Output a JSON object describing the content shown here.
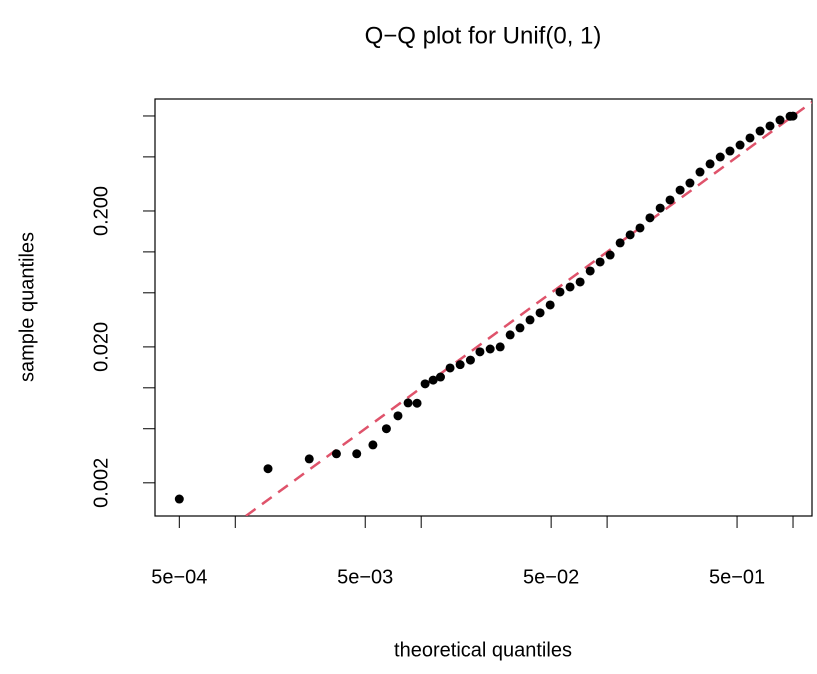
{
  "chart_data": {
    "type": "scatter",
    "title": "Q−Q plot for  Unif(0, 1)",
    "x_label": "theoretical quantiles",
    "y_label": "sample quantiles",
    "x_log": true,
    "y_log": true,
    "xlim": [
      0.00037,
      1.265
    ],
    "ylim": [
      0.00114,
      1.333
    ],
    "xticks": [
      0.0005,
      0.005,
      0.05,
      0.5
    ],
    "xticks_labels": [
      "5e−04",
      "5e−03",
      "5e−02",
      "5e−01"
    ],
    "x_minor_ticks": [
      0.001,
      0.01,
      0.1,
      1
    ],
    "yticks": [
      0.002,
      {
        "value": 0.02,
        "label": "0.020"
      },
      {
        "value": 0.2,
        "label": "0.200"
      }
    ],
    "y_minor_ticks": [
      0.005,
      0.01,
      0.05,
      0.1,
      0.5,
      1
    ],
    "color": "#000000",
    "ref_line_color": "#DF536B",
    "x": [
      0.0005,
      0.0015,
      0.0025,
      0.0035,
      0.0045,
      0.0055,
      0.0065,
      0.0075,
      0.0085,
      0.0095,
      0.0105,
      0.0116,
      0.0127,
      0.0143,
      0.0162,
      0.0184,
      0.0207,
      0.0235,
      0.0266,
      0.0301,
      0.034,
      0.0385,
      0.0436,
      0.0494,
      0.0558,
      0.0632,
      0.0716,
      0.0811,
      0.0917,
      0.1038,
      0.1175,
      0.133,
      0.1503,
      0.17,
      0.193,
      0.218,
      0.247,
      0.279,
      0.316,
      0.358,
      0.406,
      0.458,
      0.519,
      0.587,
      0.665,
      0.752,
      0.851,
      0.964,
      0.9995
    ],
    "values": [
      0.00152,
      0.00254,
      0.003,
      0.00327,
      0.00327,
      0.0038,
      0.005,
      0.00622,
      0.00774,
      0.0077,
      0.0107,
      0.0114,
      0.012,
      0.014,
      0.0148,
      0.016,
      0.0184,
      0.0193,
      0.02,
      0.0245,
      0.0276,
      0.0316,
      0.0356,
      0.0407,
      0.0507,
      0.0552,
      0.0601,
      0.0724,
      0.0843,
      0.0948,
      0.1164,
      0.1334,
      0.15,
      0.178,
      0.21,
      0.241,
      0.285,
      0.321,
      0.387,
      0.444,
      0.499,
      0.552,
      0.611,
      0.689,
      0.775,
      0.844,
      0.933,
      0.995,
      0.998
    ]
  }
}
